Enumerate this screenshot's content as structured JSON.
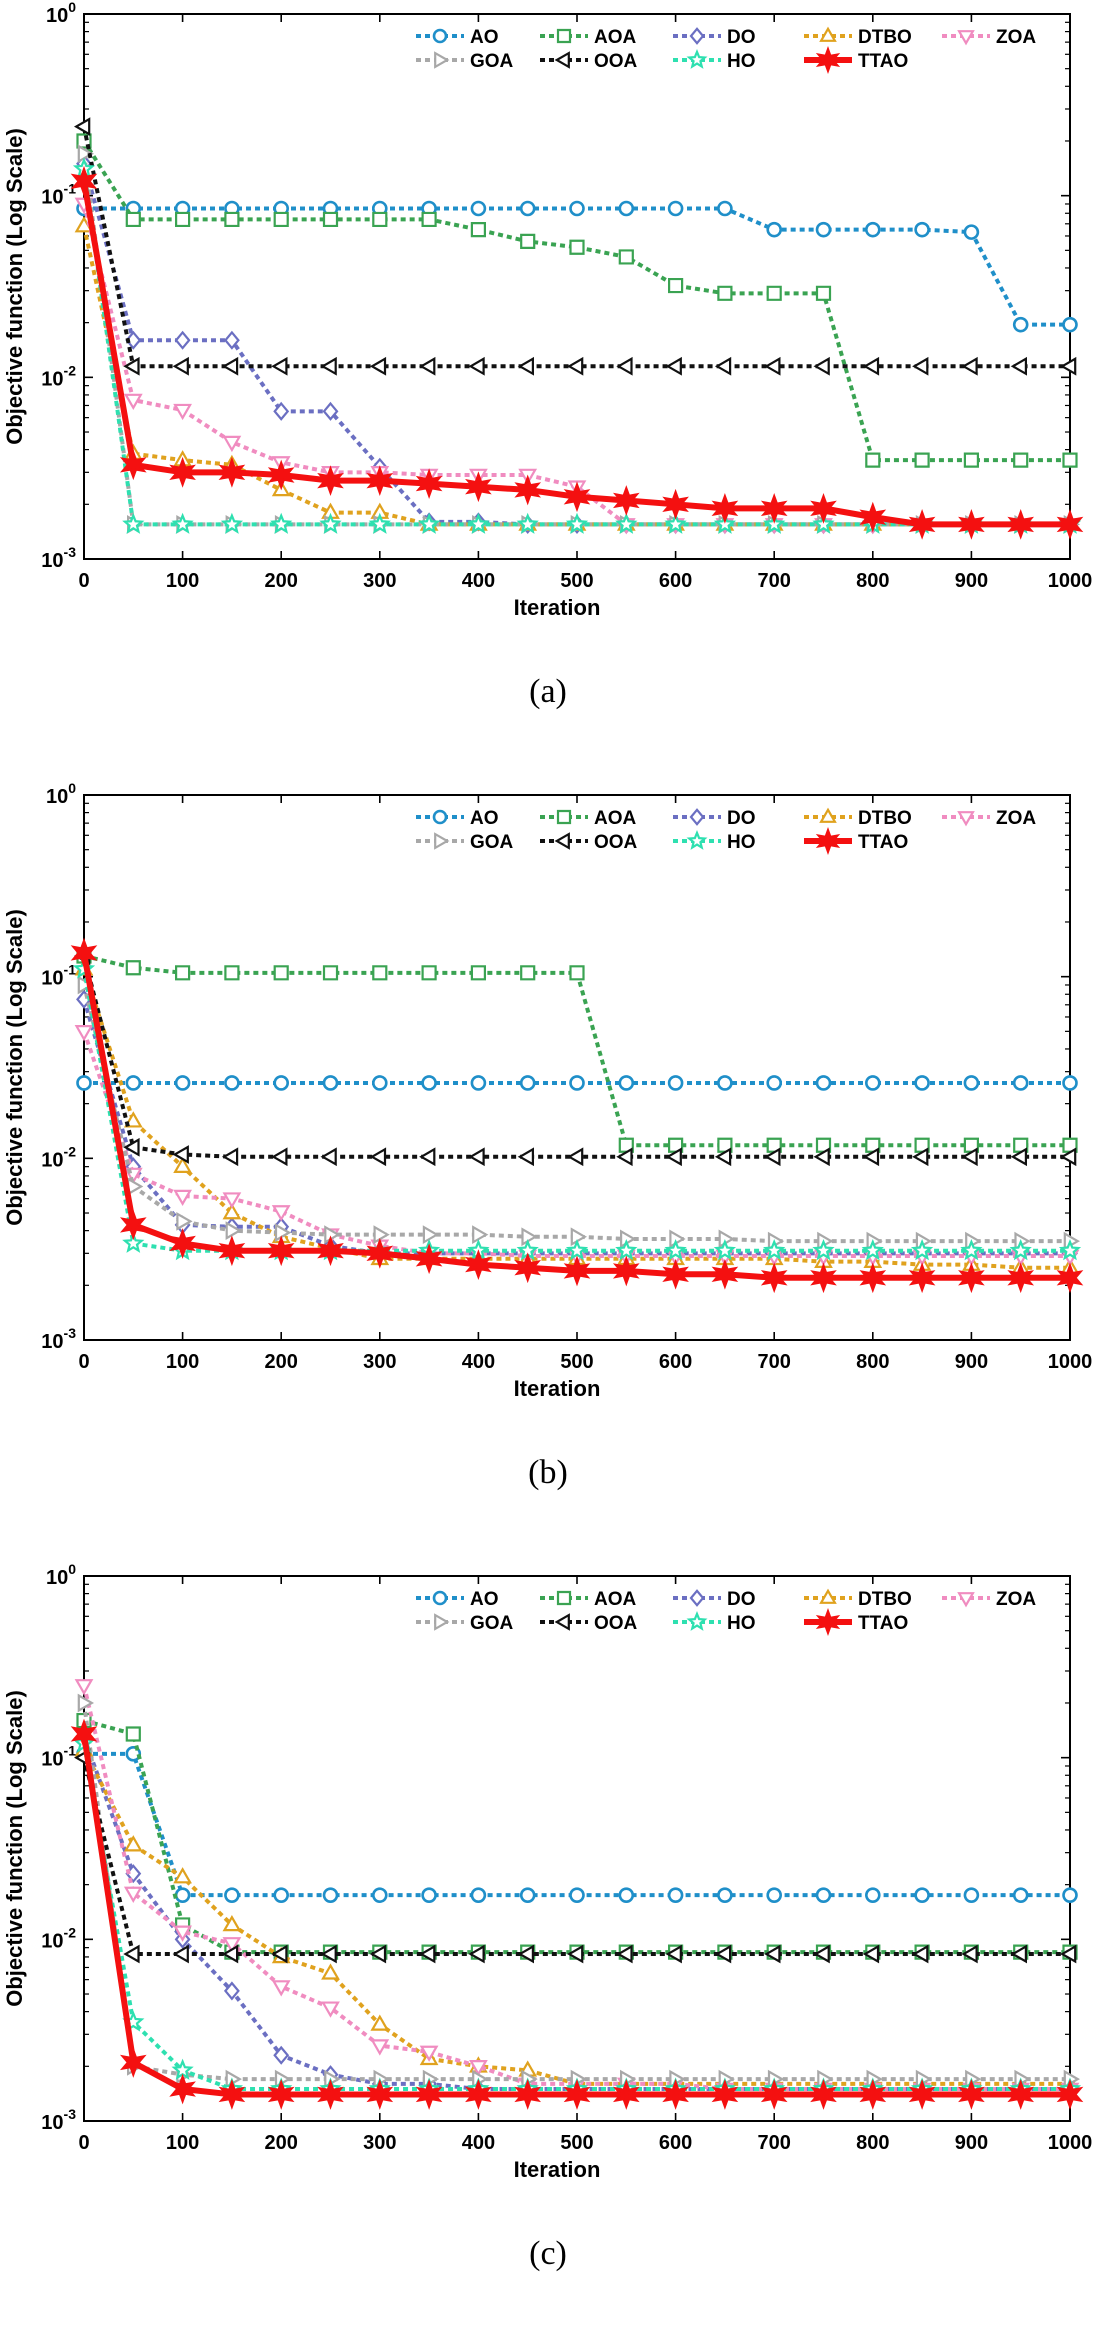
{
  "chart_data": [
    {
      "type": "line",
      "label": "(a)",
      "xlabel": "Iteration",
      "ylabel": "Objective function (Log Scale)",
      "yscale": "log",
      "xlim": [
        0,
        1000
      ],
      "ylim": [
        0.001,
        1
      ],
      "xticks": [
        "0",
        "100",
        "200",
        "300",
        "400",
        "500",
        "600",
        "700",
        "800",
        "900",
        "1000"
      ],
      "yticks": [
        {
          "base": "10",
          "exp": "0"
        },
        {
          "base": "10",
          "exp": "-1"
        },
        {
          "base": "10",
          "exp": "-2"
        },
        {
          "base": "10",
          "exp": "-3"
        }
      ],
      "legend_position": "top-right",
      "x": [
        0,
        50,
        100,
        150,
        200,
        250,
        300,
        350,
        400,
        450,
        500,
        550,
        600,
        650,
        700,
        750,
        800,
        850,
        900,
        950,
        1000
      ],
      "series": [
        {
          "name": "AO",
          "color": "#1f8fc9",
          "marker": "circle",
          "dash": true,
          "values": [
            0.085,
            0.085,
            0.085,
            0.085,
            0.085,
            0.085,
            0.085,
            0.085,
            0.085,
            0.085,
            0.085,
            0.085,
            0.085,
            0.085,
            0.065,
            0.065,
            0.065,
            0.065,
            0.063,
            0.0195,
            0.0195
          ]
        },
        {
          "name": "AOA",
          "color": "#3aa352",
          "marker": "square",
          "dash": true,
          "values": [
            0.2,
            0.074,
            0.074,
            0.074,
            0.074,
            0.074,
            0.074,
            0.074,
            0.065,
            0.056,
            0.052,
            0.046,
            0.032,
            0.029,
            0.029,
            0.029,
            0.0035,
            0.0035,
            0.0035,
            0.0035,
            0.0035
          ]
        },
        {
          "name": "DO",
          "color": "#6b6fc2",
          "marker": "diamond",
          "dash": true,
          "values": [
            0.15,
            0.016,
            0.016,
            0.016,
            0.0065,
            0.0065,
            0.0032,
            0.0016,
            0.0016,
            0.00155,
            0.00155,
            0.00155,
            0.00155,
            0.00155,
            0.00155,
            0.00155,
            0.00155,
            0.00155,
            0.00155,
            0.00155,
            0.00155
          ]
        },
        {
          "name": "DTBO",
          "color": "#e0a21e",
          "marker": "triangle-up",
          "dash": true,
          "values": [
            0.068,
            0.0038,
            0.0035,
            0.0033,
            0.0024,
            0.0018,
            0.0018,
            0.00155,
            0.00155,
            0.00155,
            0.00155,
            0.00155,
            0.00155,
            0.00155,
            0.00155,
            0.00155,
            0.00155,
            0.00155,
            0.00155,
            0.00155,
            0.00155
          ]
        },
        {
          "name": "ZOA",
          "color": "#f08cc0",
          "marker": "triangle-down",
          "dash": true,
          "values": [
            0.09,
            0.0075,
            0.0066,
            0.0044,
            0.0034,
            0.003,
            0.003,
            0.0029,
            0.0029,
            0.0029,
            0.0025,
            0.00155,
            0.00155,
            0.00155,
            0.00155,
            0.00155,
            0.00155,
            0.00155,
            0.00155,
            0.00155,
            0.00155
          ]
        },
        {
          "name": "GOA",
          "color": "#a8a8a8",
          "marker": "triangle-right",
          "dash": true,
          "values": [
            0.17,
            0.00155,
            0.00155,
            0.00155,
            0.00155,
            0.00155,
            0.00155,
            0.00155,
            0.00155,
            0.00155,
            0.00155,
            0.00155,
            0.00155,
            0.00155,
            0.00155,
            0.00155,
            0.00155,
            0.00155,
            0.00155,
            0.00155,
            0.00155
          ]
        },
        {
          "name": "OOA",
          "color": "#111111",
          "marker": "triangle-left",
          "dash": true,
          "values": [
            0.24,
            0.0115,
            0.0115,
            0.0115,
            0.0115,
            0.0115,
            0.0115,
            0.0115,
            0.0115,
            0.0115,
            0.0115,
            0.0115,
            0.0115,
            0.0115,
            0.0115,
            0.0115,
            0.0115,
            0.0115,
            0.0115,
            0.0115,
            0.0115
          ]
        },
        {
          "name": "HO",
          "color": "#2ee0b0",
          "marker": "star",
          "dash": true,
          "values": [
            0.14,
            0.00155,
            0.00155,
            0.00155,
            0.00155,
            0.00155,
            0.00155,
            0.00155,
            0.00155,
            0.00155,
            0.00155,
            0.00155,
            0.00155,
            0.00155,
            0.00155,
            0.00155,
            0.00155,
            0.00155,
            0.00155,
            0.00155,
            0.00155
          ]
        },
        {
          "name": "TTAO",
          "color": "#f41010",
          "marker": "hexstar",
          "dash": false,
          "values": [
            0.12,
            0.0033,
            0.003,
            0.003,
            0.0029,
            0.0027,
            0.0027,
            0.0026,
            0.0025,
            0.0024,
            0.0022,
            0.0021,
            0.002,
            0.0019,
            0.0019,
            0.0019,
            0.0017,
            0.00155,
            0.00155,
            0.00155,
            0.00155
          ]
        }
      ]
    },
    {
      "type": "line",
      "label": "(b)",
      "xlabel": "Iteration",
      "ylabel": "Objective function (Log Scale)",
      "yscale": "log",
      "xlim": [
        0,
        1000
      ],
      "ylim": [
        0.001,
        1
      ],
      "xticks": [
        "0",
        "100",
        "200",
        "300",
        "400",
        "500",
        "600",
        "700",
        "800",
        "900",
        "1000"
      ],
      "yticks": [
        {
          "base": "10",
          "exp": "0"
        },
        {
          "base": "10",
          "exp": "-1"
        },
        {
          "base": "10",
          "exp": "-2"
        },
        {
          "base": "10",
          "exp": "-3"
        }
      ],
      "legend_position": "top-right",
      "x": [
        0,
        50,
        100,
        150,
        200,
        250,
        300,
        350,
        400,
        450,
        500,
        550,
        600,
        650,
        700,
        750,
        800,
        850,
        900,
        950,
        1000
      ],
      "series": [
        {
          "name": "AO",
          "color": "#1f8fc9",
          "marker": "circle",
          "dash": true,
          "values": [
            0.026,
            0.026,
            0.026,
            0.026,
            0.026,
            0.026,
            0.026,
            0.026,
            0.026,
            0.026,
            0.026,
            0.026,
            0.026,
            0.026,
            0.026,
            0.026,
            0.026,
            0.026,
            0.026,
            0.026,
            0.026
          ]
        },
        {
          "name": "AOA",
          "color": "#3aa352",
          "marker": "square",
          "dash": true,
          "values": [
            0.13,
            0.112,
            0.105,
            0.105,
            0.105,
            0.105,
            0.105,
            0.105,
            0.105,
            0.105,
            0.105,
            0.0118,
            0.0118,
            0.0118,
            0.0118,
            0.0118,
            0.0118,
            0.0118,
            0.0118,
            0.0118,
            0.0118
          ]
        },
        {
          "name": "DO",
          "color": "#6b6fc2",
          "marker": "diamond",
          "dash": true,
          "values": [
            0.075,
            0.009,
            0.0043,
            0.0042,
            0.0042,
            0.0033,
            0.003,
            0.003,
            0.003,
            0.003,
            0.003,
            0.003,
            0.003,
            0.003,
            0.003,
            0.003,
            0.003,
            0.003,
            0.003,
            0.003,
            0.003
          ]
        },
        {
          "name": "DTBO",
          "color": "#e0a21e",
          "marker": "triangle-up",
          "dash": true,
          "values": [
            0.11,
            0.016,
            0.009,
            0.005,
            0.0037,
            0.0032,
            0.0028,
            0.0028,
            0.0028,
            0.0028,
            0.0028,
            0.0028,
            0.0028,
            0.0028,
            0.0028,
            0.0027,
            0.0027,
            0.0026,
            0.0026,
            0.0025,
            0.0025
          ]
        },
        {
          "name": "ZOA",
          "color": "#f08cc0",
          "marker": "triangle-down",
          "dash": true,
          "values": [
            0.05,
            0.0082,
            0.0062,
            0.006,
            0.0051,
            0.0038,
            0.0033,
            0.003,
            0.003,
            0.0029,
            0.0029,
            0.0029,
            0.0029,
            0.0029,
            0.0029,
            0.0029,
            0.0029,
            0.0029,
            0.0029,
            0.0029,
            0.0029
          ]
        },
        {
          "name": "GOA",
          "color": "#a8a8a8",
          "marker": "triangle-right",
          "dash": true,
          "values": [
            0.09,
            0.007,
            0.0045,
            0.004,
            0.0039,
            0.0038,
            0.0038,
            0.0038,
            0.0038,
            0.0037,
            0.0037,
            0.0036,
            0.0036,
            0.0036,
            0.0035,
            0.0035,
            0.0035,
            0.0035,
            0.0035,
            0.0035,
            0.0035
          ]
        },
        {
          "name": "OOA",
          "color": "#111111",
          "marker": "triangle-left",
          "dash": true,
          "values": [
            0.13,
            0.0115,
            0.0105,
            0.0102,
            0.0102,
            0.0102,
            0.0102,
            0.0102,
            0.0102,
            0.0102,
            0.0102,
            0.0102,
            0.0102,
            0.0102,
            0.0102,
            0.0102,
            0.0102,
            0.0102,
            0.0102,
            0.0102,
            0.0102
          ]
        },
        {
          "name": "HO",
          "color": "#2ee0b0",
          "marker": "star",
          "dash": true,
          "values": [
            0.11,
            0.0034,
            0.0031,
            0.0031,
            0.0031,
            0.0031,
            0.0031,
            0.0031,
            0.0031,
            0.0031,
            0.0031,
            0.0031,
            0.0031,
            0.0031,
            0.0031,
            0.0031,
            0.0031,
            0.0031,
            0.0031,
            0.0031,
            0.0031
          ]
        },
        {
          "name": "TTAO",
          "color": "#f41010",
          "marker": "hexstar",
          "dash": false,
          "values": [
            0.135,
            0.0043,
            0.0034,
            0.0031,
            0.0031,
            0.0031,
            0.003,
            0.0028,
            0.0026,
            0.0025,
            0.0024,
            0.0024,
            0.0023,
            0.0023,
            0.0022,
            0.0022,
            0.0022,
            0.0022,
            0.0022,
            0.0022,
            0.0022
          ]
        }
      ]
    },
    {
      "type": "line",
      "label": "(c)",
      "xlabel": "Iteration",
      "ylabel": "Objective function (Log Scale)",
      "yscale": "log",
      "xlim": [
        0,
        1000
      ],
      "ylim": [
        0.001,
        1
      ],
      "xticks": [
        "0",
        "100",
        "200",
        "300",
        "400",
        "500",
        "600",
        "700",
        "800",
        "900",
        "1000"
      ],
      "yticks": [
        {
          "base": "10",
          "exp": "0"
        },
        {
          "base": "10",
          "exp": "-1"
        },
        {
          "base": "10",
          "exp": "-2"
        },
        {
          "base": "10",
          "exp": "-3"
        }
      ],
      "legend_position": "top-right",
      "x": [
        0,
        50,
        100,
        150,
        200,
        250,
        300,
        350,
        400,
        450,
        500,
        550,
        600,
        650,
        700,
        750,
        800,
        850,
        900,
        950,
        1000
      ],
      "series": [
        {
          "name": "AO",
          "color": "#1f8fc9",
          "marker": "circle",
          "dash": true,
          "values": [
            0.105,
            0.105,
            0.0175,
            0.0175,
            0.0175,
            0.0175,
            0.0175,
            0.0175,
            0.0175,
            0.0175,
            0.0175,
            0.0175,
            0.0175,
            0.0175,
            0.0175,
            0.0175,
            0.0175,
            0.0175,
            0.0175,
            0.0175,
            0.0175
          ]
        },
        {
          "name": "AOA",
          "color": "#3aa352",
          "marker": "square",
          "dash": true,
          "values": [
            0.16,
            0.135,
            0.012,
            0.0085,
            0.0085,
            0.0085,
            0.0085,
            0.0085,
            0.0085,
            0.0085,
            0.0085,
            0.0085,
            0.0085,
            0.0085,
            0.0085,
            0.0085,
            0.0085,
            0.0085,
            0.0085,
            0.0085,
            0.0085
          ]
        },
        {
          "name": "DO",
          "color": "#6b6fc2",
          "marker": "diamond",
          "dash": true,
          "values": [
            0.13,
            0.023,
            0.01,
            0.0052,
            0.0023,
            0.0018,
            0.0016,
            0.0016,
            0.0015,
            0.0015,
            0.0015,
            0.0015,
            0.0015,
            0.0015,
            0.0015,
            0.0015,
            0.0015,
            0.0015,
            0.0015,
            0.0015,
            0.0015
          ]
        },
        {
          "name": "DTBO",
          "color": "#e0a21e",
          "marker": "triangle-up",
          "dash": true,
          "values": [
            0.11,
            0.033,
            0.022,
            0.012,
            0.008,
            0.0065,
            0.0034,
            0.0022,
            0.002,
            0.0019,
            0.0016,
            0.0016,
            0.0016,
            0.0016,
            0.0016,
            0.0016,
            0.0016,
            0.0016,
            0.0016,
            0.0016,
            0.0016
          ]
        },
        {
          "name": "ZOA",
          "color": "#f08cc0",
          "marker": "triangle-down",
          "dash": true,
          "values": [
            0.25,
            0.018,
            0.011,
            0.0095,
            0.0055,
            0.0042,
            0.0026,
            0.0024,
            0.002,
            0.0016,
            0.0016,
            0.0016,
            0.0016,
            0.0015,
            0.0015,
            0.0015,
            0.0015,
            0.0015,
            0.0015,
            0.0015,
            0.0015
          ]
        },
        {
          "name": "GOA",
          "color": "#a8a8a8",
          "marker": "triangle-right",
          "dash": true,
          "values": [
            0.2,
            0.002,
            0.0018,
            0.0017,
            0.0017,
            0.0017,
            0.0017,
            0.0017,
            0.0017,
            0.0017,
            0.0017,
            0.0017,
            0.0017,
            0.0017,
            0.0017,
            0.0017,
            0.0017,
            0.0017,
            0.0017,
            0.0017,
            0.0017
          ]
        },
        {
          "name": "OOA",
          "color": "#111111",
          "marker": "triangle-left",
          "dash": true,
          "values": [
            0.1,
            0.0083,
            0.0083,
            0.0083,
            0.0083,
            0.0083,
            0.0083,
            0.0083,
            0.0083,
            0.0083,
            0.0083,
            0.0083,
            0.0083,
            0.0083,
            0.0083,
            0.0083,
            0.0083,
            0.0083,
            0.0083,
            0.0083,
            0.0083
          ]
        },
        {
          "name": "HO",
          "color": "#2ee0b0",
          "marker": "star",
          "dash": true,
          "values": [
            0.12,
            0.0035,
            0.0019,
            0.0015,
            0.0015,
            0.0015,
            0.0015,
            0.0015,
            0.0015,
            0.0015,
            0.0015,
            0.0015,
            0.0015,
            0.0015,
            0.0015,
            0.0015,
            0.0015,
            0.0015,
            0.0015,
            0.0015,
            0.0015
          ]
        },
        {
          "name": "TTAO",
          "color": "#f41010",
          "marker": "hexstar",
          "dash": false,
          "values": [
            0.135,
            0.0021,
            0.0015,
            0.0014,
            0.0014,
            0.0014,
            0.0014,
            0.0014,
            0.0014,
            0.0014,
            0.0014,
            0.0014,
            0.0014,
            0.0014,
            0.0014,
            0.0014,
            0.0014,
            0.0014,
            0.0014,
            0.0014,
            0.0014
          ]
        }
      ]
    }
  ]
}
